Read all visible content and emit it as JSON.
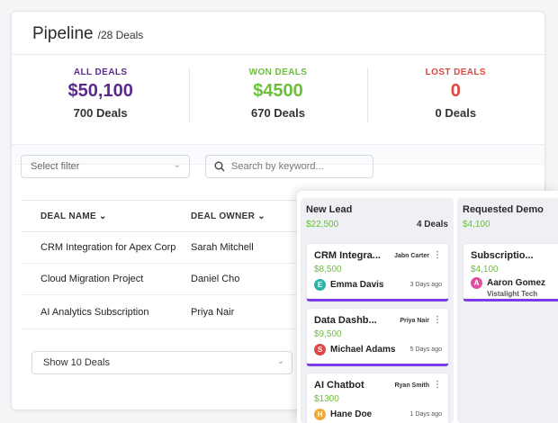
{
  "header": {
    "title": "Pipeline",
    "count": "/28 Deals"
  },
  "stats": [
    {
      "label": "ALL DEALS",
      "value": "$50,100",
      "sub": "700 Deals"
    },
    {
      "label": "WON DEALS",
      "value": "$4500",
      "sub": "670 Deals"
    },
    {
      "label": "LOST DEALS",
      "value": "0",
      "sub": "0 Deals"
    }
  ],
  "filters": {
    "select_placeholder": "Select filter",
    "search_placeholder": "Search by keyword..."
  },
  "table": {
    "columns": [
      "DEAL NAME",
      "DEAL OWNER"
    ],
    "rows": [
      {
        "name": "CRM Integration for Apex Corp",
        "owner": "Sarah Mitchell"
      },
      {
        "name": "Cloud Migration Project",
        "owner": "Daniel Cho"
      },
      {
        "name": "AI Analytics Subscription",
        "owner": "Priya Nair"
      }
    ],
    "page_size_label": "Show 10 Deals"
  },
  "board": {
    "columns": [
      {
        "name": "New Lead",
        "amount": "$22,500",
        "count": "4 Deals",
        "deals": [
          {
            "title": "CRM Integra...",
            "owner": "Jabn Carter",
            "price": "$8,500",
            "contact": "Emma Davis",
            "initial": "E",
            "avatar_color": "#2bb5a8",
            "ago": "3 Days ago"
          },
          {
            "title": "Data Dashb...",
            "owner": "Priya Nair",
            "price": "$9,500",
            "contact": "Michael Adams",
            "initial": "S",
            "avatar_color": "#e04848",
            "ago": "5 Days ago"
          },
          {
            "title": "AI Chatbot",
            "owner": "Ryan Smith",
            "price": "$1300",
            "contact": "Hane Doe",
            "initial": "H",
            "avatar_color": "#f2a93b",
            "ago": "1 Days ago"
          }
        ]
      },
      {
        "name": "Requested Demo",
        "amount": "$4,100",
        "deals": [
          {
            "title": "Subscriptio...",
            "price": "$4,100",
            "contact": "Aaron Gomez",
            "initial": "A",
            "avatar_color": "#e24fa0",
            "company": "Vistalight Tech"
          }
        ]
      }
    ]
  },
  "colors": {
    "accent": "#5b2a8c",
    "won": "#6bbf3a",
    "lost": "#e0483e",
    "card_bar": "#7c3aed"
  }
}
